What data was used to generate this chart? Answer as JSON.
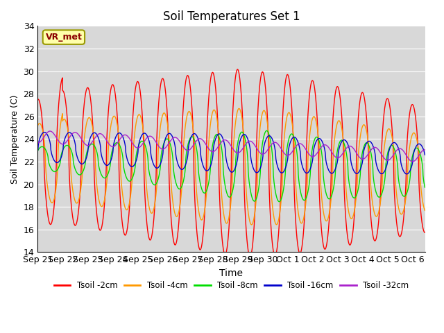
{
  "title": "Soil Temperatures Set 1",
  "xlabel": "Time",
  "ylabel": "Soil Temperature (C)",
  "ylim": [
    14,
    34
  ],
  "bg_color": "#d8d8d8",
  "fig_color": "#ffffff",
  "grid_color": "#ffffff",
  "annotation": "VR_met",
  "legend_labels": [
    "Tsoil -2cm",
    "Tsoil -4cm",
    "Tsoil -8cm",
    "Tsoil -16cm",
    "Tsoil -32cm"
  ],
  "line_colors": [
    "#ff0000",
    "#ff9900",
    "#00dd00",
    "#0000cc",
    "#aa22cc"
  ],
  "x_tick_labels": [
    "Sep 21",
    "Sep 22",
    "Sep 23",
    "Sep 24",
    "Sep 25",
    "Sep 26",
    "Sep 27",
    "Sep 28",
    "Sep 29",
    "Sep 30",
    "Oct 1",
    "Oct 2",
    "Oct 3",
    "Oct 4",
    "Oct 5",
    "Oct 6"
  ],
  "n_days": 15.5,
  "samples_per_day": 240
}
